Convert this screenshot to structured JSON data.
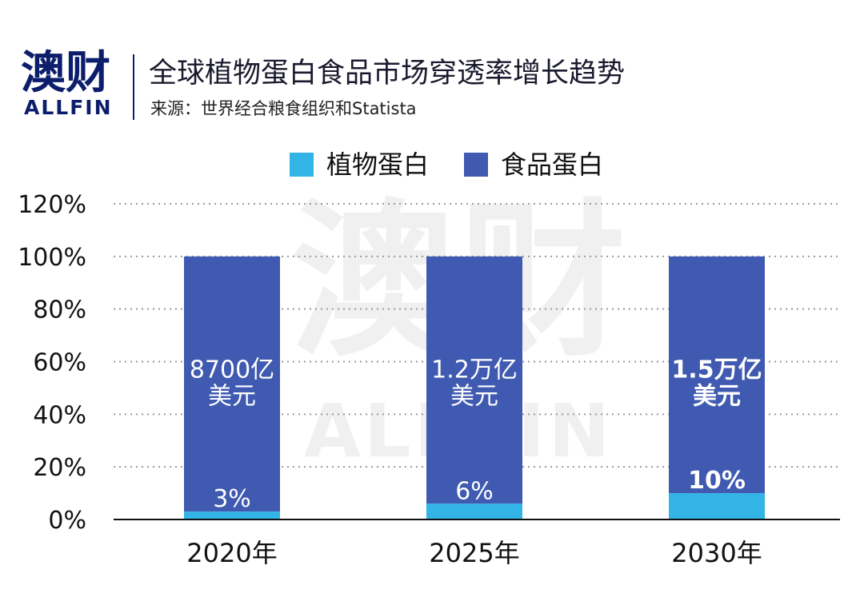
{
  "header": {
    "logo_cn": "澳财",
    "logo_en": "ALLFIN",
    "title": "全球植物蛋白食品市场穿透率增长趋势",
    "source": "来源：世界经合粮食组织和Statista"
  },
  "watermark": {
    "cn": "澳财",
    "en": "ALLFIN"
  },
  "colors": {
    "logo": "#0c1d6b",
    "plant": "#33b4e6",
    "food": "#3f5ab0",
    "grid": "#9a9a9a"
  },
  "chart_data": {
    "type": "bar",
    "stacked": true,
    "categories": [
      "2020年",
      "2025年",
      "2030年"
    ],
    "series": [
      {
        "name": "植物蛋白",
        "values": [
          3,
          6,
          10
        ],
        "labels": [
          "3%",
          "6%",
          "10%"
        ]
      },
      {
        "name": "食品蛋白",
        "values": [
          97,
          94,
          90
        ],
        "labels": [
          [
            "8700亿",
            "美元"
          ],
          [
            "1.2万亿",
            "美元"
          ],
          [
            "1.5万亿",
            "美元"
          ]
        ]
      }
    ],
    "bold_labels": [
      false,
      false,
      true
    ],
    "ylim": [
      0,
      120
    ],
    "yticks": [
      0,
      20,
      40,
      60,
      80,
      100,
      120
    ],
    "ytick_labels": [
      "0%",
      "20%",
      "40%",
      "60%",
      "80%",
      "100%",
      "120%"
    ],
    "grid": true,
    "legend": "top-center"
  }
}
